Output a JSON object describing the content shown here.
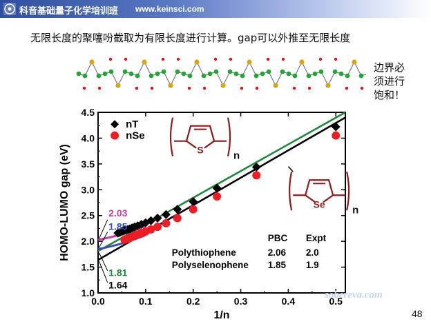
{
  "header": {
    "brand": "科音基础量子化学培训班",
    "site": "www.keinsci.com"
  },
  "headline": "无限长度的聚噻吩截取为有限长度进行计算。gap可以外推至无限长度",
  "side_note": [
    "边界必",
    "须进行",
    "饱和！"
  ],
  "page_number": "48",
  "watermark": "sobereva.com",
  "colors": {
    "nT": "#000000",
    "nSe": "#ee1c24",
    "green_fit": "#1a8a3a",
    "black_fit": "#000000",
    "magenta": "#d23aa8",
    "blue": "#3b4fb0",
    "structure": "#8b1a1a"
  },
  "chart_data": {
    "type": "scatter",
    "xlabel": "1/n",
    "ylabel": "HOMO-LUMO gap (eV)",
    "xlim": [
      0.0,
      0.52
    ],
    "ylim": [
      1.0,
      4.5
    ],
    "xticks": [
      "0.0",
      "0.1",
      "0.2",
      "0.3",
      "0.4",
      "0.5"
    ],
    "yticks": [
      "1.0",
      "1.5",
      "2.0",
      "2.5",
      "3.0",
      "3.5",
      "4.0",
      "4.5"
    ],
    "legend": {
      "placement": "top-left",
      "entries": [
        "nT",
        "nSe"
      ]
    },
    "series": [
      {
        "name": "nT",
        "marker": "diamond",
        "x": [
          0.5,
          0.333,
          0.25,
          0.2,
          0.1667,
          0.1429,
          0.125,
          0.1111,
          0.1,
          0.0909,
          0.0833,
          0.0769,
          0.0714,
          0.0667,
          0.0625,
          0.0588,
          0.0556,
          0.0526,
          0.05,
          0.0455,
          0.0417
        ],
        "y": [
          4.22,
          3.44,
          3.03,
          2.77,
          2.62,
          2.52,
          2.45,
          2.4,
          2.36,
          2.33,
          2.3,
          2.28,
          2.26,
          2.24,
          2.23,
          2.22,
          2.21,
          2.2,
          2.19,
          2.17,
          2.16
        ]
      },
      {
        "name": "nSe",
        "marker": "circle",
        "x": [
          0.5,
          0.333,
          0.25,
          0.2,
          0.1667,
          0.1429,
          0.125,
          0.1111,
          0.1,
          0.0909,
          0.0833,
          0.0769,
          0.0714,
          0.0667,
          0.0625,
          0.0588,
          0.0556
        ],
        "y": [
          4.05,
          3.28,
          2.87,
          2.62,
          2.45,
          2.35,
          2.28,
          2.23,
          2.19,
          2.16,
          2.13,
          2.11,
          2.09,
          2.07,
          2.05,
          2.04,
          2.03
        ]
      }
    ],
    "fit_lines": [
      {
        "color": "green",
        "intercept": 1.81,
        "end_y": 4.5,
        "end_x": 0.52
      },
      {
        "color": "black",
        "intercept": 1.64,
        "end_y": 4.4,
        "end_x": 0.52
      }
    ],
    "short_curves": [
      {
        "color": "magenta",
        "from": [
          0.0,
          2.03
        ],
        "to": [
          0.1,
          2.3
        ]
      },
      {
        "color": "blue",
        "from": [
          0.0,
          1.85
        ],
        "to": [
          0.1,
          2.12
        ]
      }
    ],
    "annotations": {
      "magenta": "2.03",
      "blue": "1.85",
      "green": "1.81",
      "black": "1.64"
    },
    "structures": {
      "thiophene_atom": "S",
      "thiophene_sub": "n",
      "selenophene_atom": "Se",
      "selenophene_sub": "n"
    },
    "table": {
      "headers": [
        "",
        "PBC",
        "Expt"
      ],
      "rows": [
        [
          "Polythiophene",
          "2.06",
          "2.0"
        ],
        [
          "Polyselenophene",
          "1.85",
          "1.9"
        ]
      ]
    }
  }
}
